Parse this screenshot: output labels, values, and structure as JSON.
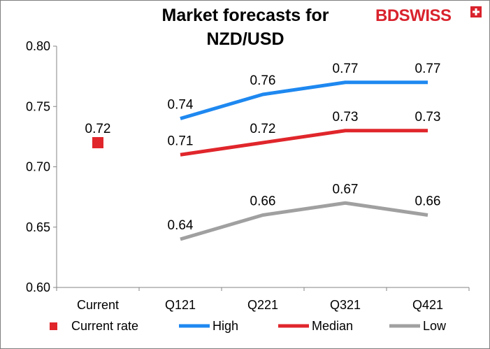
{
  "title_line1": "Market forecasts for",
  "title_line2": "NZD/USD",
  "logo": {
    "part1": "BD",
    "part2": "SWISS",
    "color": "#d9232d"
  },
  "chart_data": {
    "type": "line",
    "title": "Market forecasts for NZD/USD",
    "categories": [
      "Current",
      "Q121",
      "Q221",
      "Q321",
      "Q421"
    ],
    "ylim": [
      0.6,
      0.8
    ],
    "yticks": [
      "0.60",
      "0.65",
      "0.70",
      "0.75",
      "0.80"
    ],
    "grid": false,
    "legend_position": "bottom",
    "series": [
      {
        "name": "Current rate",
        "kind": "marker",
        "color": "#e0262b",
        "values": [
          0.72,
          null,
          null,
          null,
          null
        ],
        "labels": [
          "0.72",
          null,
          null,
          null,
          null
        ]
      },
      {
        "name": "High",
        "kind": "line",
        "color": "#1e88f0",
        "values": [
          null,
          0.74,
          0.76,
          0.77,
          0.77
        ],
        "labels": [
          null,
          "0.74",
          "0.76",
          "0.77",
          "0.77"
        ]
      },
      {
        "name": "Median",
        "kind": "line",
        "color": "#e0262b",
        "values": [
          null,
          0.71,
          0.72,
          0.73,
          0.73
        ],
        "labels": [
          null,
          "0.71",
          "0.72",
          "0.73",
          "0.73"
        ]
      },
      {
        "name": "Low",
        "kind": "line",
        "color": "#a0a0a0",
        "values": [
          null,
          0.64,
          0.66,
          0.67,
          0.66
        ],
        "labels": [
          null,
          "0.64",
          "0.66",
          "0.67",
          "0.66"
        ]
      }
    ]
  }
}
